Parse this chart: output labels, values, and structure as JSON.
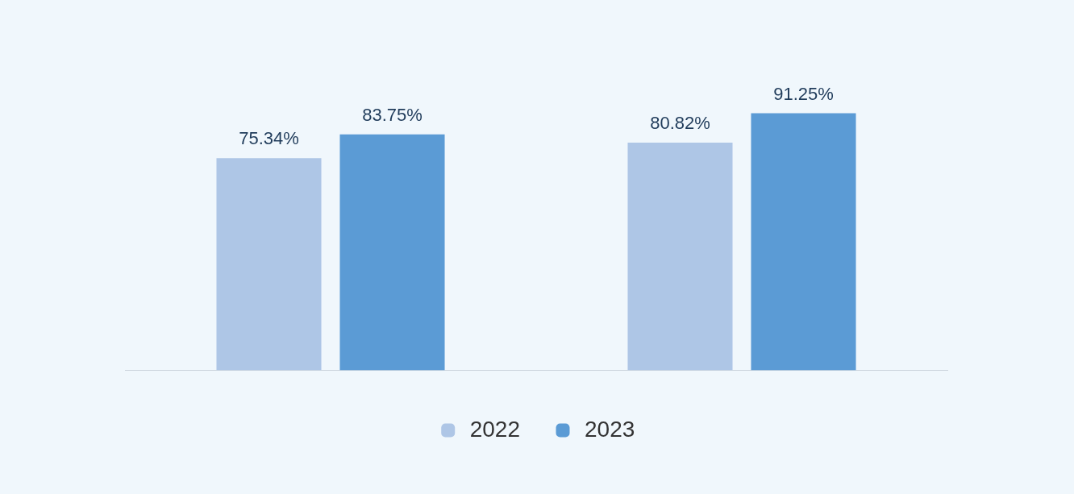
{
  "chart_data": {
    "type": "bar",
    "categories": [
      null,
      null
    ],
    "legend": "bottom",
    "grid": false,
    "series": [
      {
        "name": "2022",
        "color": "#aec6e6",
        "values": [
          75.34,
          80.82
        ],
        "value_labels": [
          "75.34%",
          "80.82%"
        ]
      },
      {
        "name": "2023",
        "color": "#5b9bd5",
        "values": [
          83.75,
          91.25
        ],
        "value_labels": [
          "83.75%",
          "91.25%"
        ]
      }
    ]
  }
}
